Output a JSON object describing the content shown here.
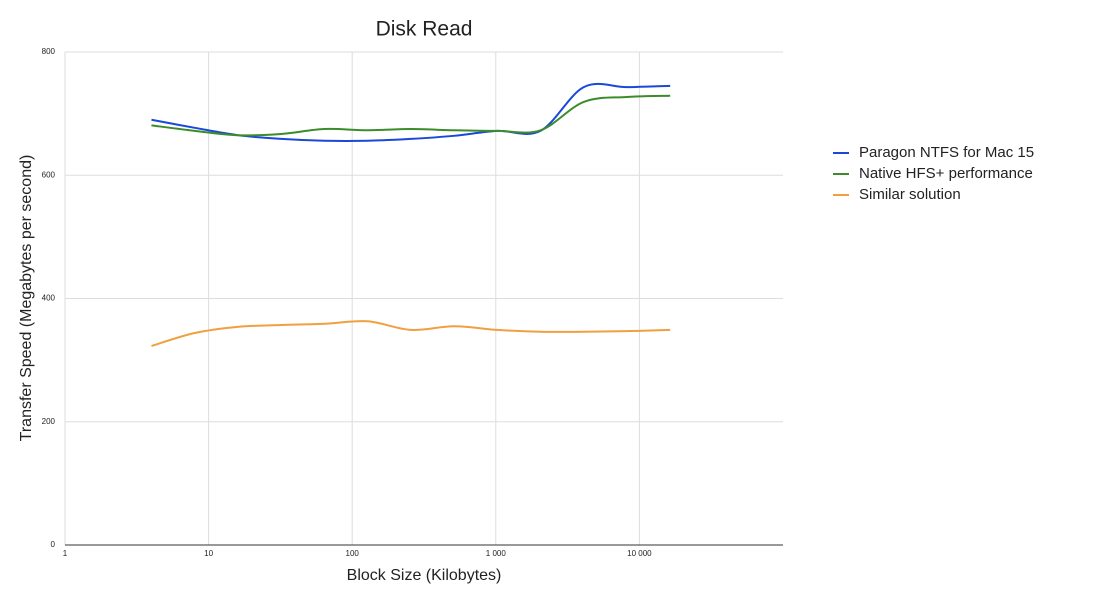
{
  "chart_data": {
    "type": "line",
    "title": "Disk Read",
    "x_label": "Block Size (Kilobytes)",
    "y_label": "Transfer Speed (Megabytes per second)",
    "x": [
      4,
      8,
      16,
      32,
      64,
      128,
      256,
      512,
      1024,
      2048,
      4096,
      8192,
      16384
    ],
    "series": [
      {
        "name": "Paragon NTFS for Mac 15",
        "color": "#1a48d8",
        "values": [
          690,
          677,
          665,
          659,
          656,
          656,
          659,
          664,
          672,
          672,
          743,
          743,
          745
        ]
      },
      {
        "name": "Native HFS+ performance",
        "color": "#3c8c2c",
        "values": [
          681,
          672,
          665,
          667,
          675,
          673,
          675,
          673,
          672,
          673,
          719,
          727,
          729
        ]
      },
      {
        "name": "Similar solution",
        "color": "#f0a040",
        "values": [
          323,
          344,
          354,
          357,
          359,
          363,
          349,
          355,
          349,
          346,
          346,
          347,
          349
        ]
      }
    ],
    "xscale": "log",
    "xlim": [
      1,
      100000
    ],
    "xticks": [
      1,
      10,
      100,
      {
        "value": 1000,
        "label": "1 000"
      },
      {
        "value": 10000,
        "label": "10 000"
      }
    ],
    "ylim": [
      0,
      800
    ],
    "yticks": [
      0,
      200,
      400,
      600,
      800
    ],
    "grid": true,
    "legend": "right"
  }
}
